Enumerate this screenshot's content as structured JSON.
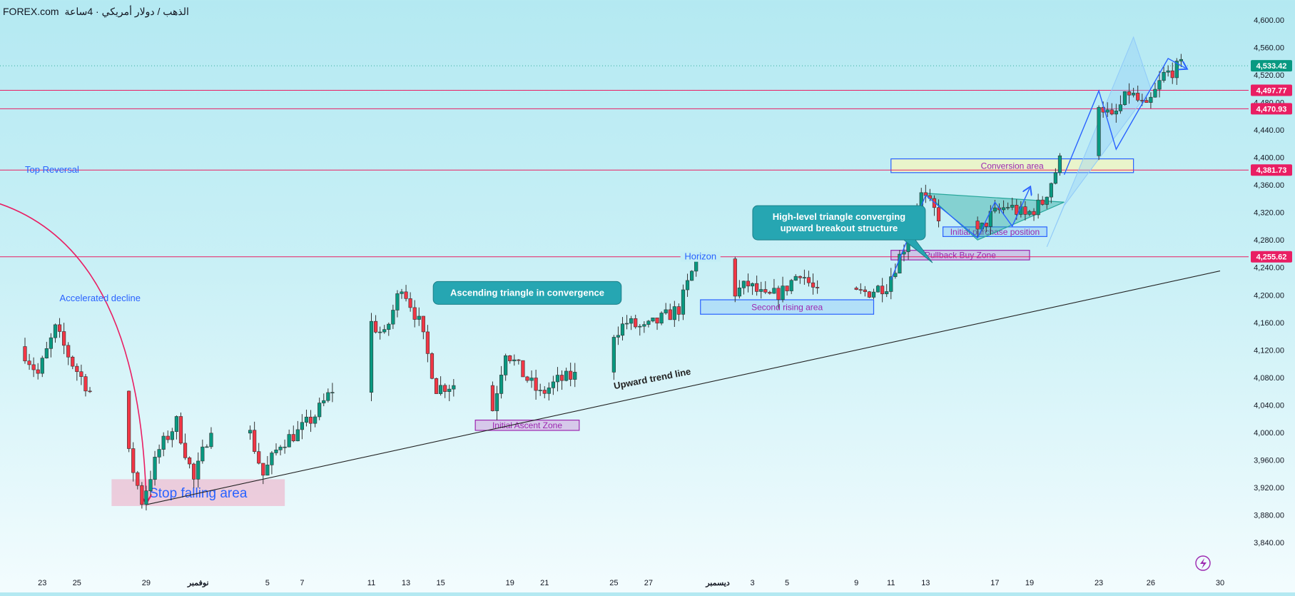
{
  "header": {
    "brand": "FOREX.com",
    "symbol": "الذهب / دولار أمريكي · 4ساعة"
  },
  "colors": {
    "up": "#089981",
    "down": "#f23645",
    "wick": "#333333",
    "level": "#e91e63",
    "trend": "#222222",
    "blue": "#2962ff",
    "purple": "#9c27b0",
    "teal": "#26a69a"
  },
  "chart_data": {
    "type": "candlestick",
    "x_start": "2024-10-22",
    "x_end": "2024-12-30",
    "ylim": [
      3840,
      4600
    ],
    "y_ticks": [
      3840,
      3880,
      3920,
      3960,
      4000,
      4040,
      4080,
      4120,
      4160,
      4200,
      4240,
      4280,
      4320,
      4360,
      4400,
      4440,
      4480,
      4520,
      4560,
      4600
    ],
    "x_ticks": [
      {
        "label": "23",
        "date": "2024-10-23"
      },
      {
        "label": "25",
        "date": "2024-10-25"
      },
      {
        "label": "29",
        "date": "2024-10-29"
      },
      {
        "label": "نوفمبر",
        "date": "2024-11-01"
      },
      {
        "label": "5",
        "date": "2024-11-05"
      },
      {
        "label": "7",
        "date": "2024-11-07"
      },
      {
        "label": "11",
        "date": "2024-11-11"
      },
      {
        "label": "13",
        "date": "2024-11-13"
      },
      {
        "label": "15",
        "date": "2024-11-15"
      },
      {
        "label": "19",
        "date": "2024-11-19"
      },
      {
        "label": "21",
        "date": "2024-11-21"
      },
      {
        "label": "25",
        "date": "2024-11-25"
      },
      {
        "label": "27",
        "date": "2024-11-27"
      },
      {
        "label": "ديسمبر",
        "date": "2024-12-01"
      },
      {
        "label": "3",
        "date": "2024-12-03"
      },
      {
        "label": "5",
        "date": "2024-12-05"
      },
      {
        "label": "9",
        "date": "2024-12-09"
      },
      {
        "label": "11",
        "date": "2024-12-11"
      },
      {
        "label": "13",
        "date": "2024-12-13"
      },
      {
        "label": "17",
        "date": "2024-12-17"
      },
      {
        "label": "19",
        "date": "2024-12-19"
      },
      {
        "label": "23",
        "date": "2024-12-23"
      },
      {
        "label": "26",
        "date": "2024-12-26"
      },
      {
        "label": "30",
        "date": "2024-12-30"
      }
    ],
    "price_labels": [
      {
        "value": "4,533.42",
        "price": 4533.42,
        "color": "#089981"
      },
      {
        "value": "4,497.77",
        "price": 4497.77,
        "color": "#e91e63"
      },
      {
        "value": "4,470.93",
        "price": 4470.93,
        "color": "#e91e63"
      },
      {
        "value": "4,381.73",
        "price": 4381.73,
        "color": "#e91e63"
      },
      {
        "value": "4,255.62",
        "price": 4255.62,
        "color": "#e91e63"
      }
    ],
    "price_path": [
      [
        "2024-10-22",
        4125
      ],
      [
        "2024-10-23",
        4085
      ],
      [
        "2024-10-24",
        4150
      ],
      [
        "2024-10-25",
        4100
      ],
      [
        "2024-10-26",
        4060
      ],
      [
        "2024-10-28",
        3990
      ],
      [
        "2024-10-29",
        3900
      ],
      [
        "2024-10-30",
        3975
      ],
      [
        "2024-10-31",
        4015
      ],
      [
        "2024-11-01",
        3930
      ],
      [
        "2024-11-02",
        4010
      ],
      [
        "2024-11-04",
        4018
      ],
      [
        "2024-11-05",
        3938
      ],
      [
        "2024-11-06",
        3985
      ],
      [
        "2024-11-07",
        4000
      ],
      [
        "2024-11-08",
        4025
      ],
      [
        "2024-11-10",
        4100
      ],
      [
        "2024-11-11",
        4165
      ],
      [
        "2024-11-12",
        4140
      ],
      [
        "2024-11-13",
        4215
      ],
      [
        "2024-11-14",
        4160
      ],
      [
        "2024-11-15",
        4065
      ],
      [
        "2024-11-16",
        4070
      ],
      [
        "2024-11-18",
        4005
      ],
      [
        "2024-11-19",
        4120
      ],
      [
        "2024-11-20",
        4085
      ],
      [
        "2024-11-21",
        4055
      ],
      [
        "2024-11-22",
        4075
      ],
      [
        "2024-11-24",
        4090
      ],
      [
        "2024-11-25",
        4140
      ],
      [
        "2024-11-26",
        4160
      ],
      [
        "2024-11-27",
        4150
      ],
      [
        "2024-11-28",
        4165
      ],
      [
        "2024-11-29",
        4180
      ],
      [
        "2024-11-30",
        4250
      ],
      [
        "2024-12-01",
        4225
      ],
      [
        "2024-12-02",
        4200
      ],
      [
        "2024-12-03",
        4215
      ],
      [
        "2024-12-04",
        4195
      ],
      [
        "2024-12-05",
        4205
      ],
      [
        "2024-12-06",
        4235
      ],
      [
        "2024-12-07",
        4200
      ],
      [
        "2024-12-09",
        4200
      ],
      [
        "2024-12-10",
        4205
      ],
      [
        "2024-12-11",
        4215
      ],
      [
        "2024-12-12",
        4270
      ],
      [
        "2024-12-13",
        4345
      ],
      [
        "2024-12-14",
        4315
      ],
      [
        "2024-12-16",
        4280
      ],
      [
        "2024-12-17",
        4315
      ],
      [
        "2024-12-18",
        4330
      ],
      [
        "2024-12-19",
        4315
      ],
      [
        "2024-12-20",
        4335
      ],
      [
        "2024-12-21",
        4395
      ],
      [
        "2024-12-22",
        4430
      ],
      [
        "2024-12-23",
        4490
      ],
      [
        "2024-12-24",
        4455
      ],
      [
        "2024-12-25",
        4495
      ],
      [
        "2024-12-26",
        4470
      ],
      [
        "2024-12-27",
        4520
      ],
      [
        "2024-12-28",
        4533
      ]
    ],
    "levels": [
      {
        "name": "Top Reversal",
        "price": 4381.73,
        "color": "#e91e63"
      },
      {
        "name": "Horizon",
        "price": 4255.62,
        "color": "#e91e63"
      },
      {
        "name": "current",
        "price": 4533.42,
        "color": "#089981"
      },
      {
        "name": "",
        "price": 4497.77,
        "color": "#e91e63"
      },
      {
        "name": "",
        "price": 4470.93,
        "color": "#e91e63"
      }
    ],
    "trend_line": {
      "label": "Upward trend line",
      "from": [
        "2024-10-29",
        3895
      ],
      "to": [
        "2024-12-30",
        4235
      ]
    },
    "zones": [
      {
        "label": "Stop falling area",
        "x0": "2024-10-27",
        "x1": "2024-11-06",
        "y0": 3893,
        "y1": 3932,
        "fill": "rgba(244,143,177,0.42)",
        "stroke": "none",
        "text_color": "#2962ff",
        "text_size": 19
      },
      {
        "label": "Initial Ascent Zone",
        "x0": "2024-11-17",
        "x1": "2024-11-23",
        "y0": 4003,
        "y1": 4018,
        "fill": "rgba(206,147,216,0.45)",
        "stroke": "#9c27b0",
        "text_color": "#9c27b0",
        "text_size": 12
      },
      {
        "label": "Second rising area",
        "x0": "2024-11-30",
        "x1": "2024-12-10",
        "y0": 4172,
        "y1": 4193,
        "fill": "rgba(144,202,249,0.45)",
        "stroke": "#2962ff",
        "text_color": "#9c27b0",
        "text_size": 12
      },
      {
        "label": "Pullback Buy Zone",
        "x0": "2024-12-11",
        "x1": "2024-12-19",
        "y0": 4251,
        "y1": 4265,
        "fill": "rgba(206,147,216,0.45)",
        "stroke": "#9c27b0",
        "text_color": "#9c27b0",
        "text_size": 12
      },
      {
        "label": "Initial purchase position",
        "x0": "2024-12-14",
        "x1": "2024-12-20",
        "y0": 4285,
        "y1": 4299,
        "fill": "rgba(144,202,249,0.45)",
        "stroke": "#2962ff",
        "text_color": "#9c27b0",
        "text_size": 12
      },
      {
        "label": "Conversion area",
        "x0": "2024-12-11",
        "x1": "2024-12-25",
        "y0": 4378,
        "y1": 4398,
        "fill": "rgba(240,244,195,0.85)",
        "stroke": "#2962ff",
        "text_color": "#9c27b0",
        "text_size": 12
      }
    ],
    "annotations": [
      {
        "kind": "plain",
        "text": "Top Reversal",
        "date": "2024-10-22",
        "price": 4381.73,
        "color": "#2962ff"
      },
      {
        "kind": "plain",
        "text": "Horizon",
        "date": "2024-11-30",
        "price": 4255.62,
        "color": "#2962ff"
      },
      {
        "kind": "plain",
        "text": "Accelerated decline",
        "date": "2024-10-24",
        "price": 4195,
        "color": "#2962ff"
      },
      {
        "kind": "plain",
        "text": "Upward trend line",
        "date": "2024-11-25",
        "price": 4067,
        "color": "#222222",
        "rotate": -11
      },
      {
        "kind": "callout",
        "lines": [
          "Ascending triangle in convergence"
        ],
        "date": "2024-11-20",
        "price": 4203
      },
      {
        "kind": "callout",
        "lines": [
          "High-level triangle converging",
          "upward breakout structure"
        ],
        "date": "2024-12-08",
        "price": 4305
      }
    ],
    "triangles": [
      {
        "points": [
          [
            "2024-12-13",
            4348
          ],
          [
            "2024-12-21",
            4335
          ],
          [
            "2024-12-16",
            4280
          ]
        ],
        "fill": "rgba(38,166,154,0.40)",
        "stroke": "#26a69a"
      }
    ],
    "channel": {
      "points": [
        [
          "2024-12-20",
          4270
        ],
        [
          "2024-12-25",
          4575
        ],
        [
          "2024-12-26",
          4500
        ],
        [
          "2024-12-21",
          4330
        ]
      ],
      "fill": "rgba(144,202,249,0.35)",
      "stroke": "#90caf9"
    },
    "zigzags": [
      {
        "points": [
          [
            "2024-12-11",
            4222
          ],
          [
            "2024-12-13",
            4345
          ],
          [
            "2024-12-16",
            4283
          ],
          [
            "2024-12-17",
            4335
          ],
          [
            "2024-12-18",
            4300
          ],
          [
            "2024-12-19",
            4355
          ]
        ],
        "color": "#2962ff"
      },
      {
        "points": [
          [
            "2024-12-21",
            4375
          ],
          [
            "2024-12-23",
            4497
          ],
          [
            "2024-12-24",
            4412
          ],
          [
            "2024-12-26",
            4500
          ],
          [
            "2024-12-27",
            4544
          ],
          [
            "2024-12-28",
            4530
          ]
        ],
        "color": "#2962ff"
      }
    ],
    "arc": {
      "from": [
        "2024-10-20",
        4337
      ],
      "to": [
        "2024-10-29",
        3900
      ],
      "color": "#e91e63"
    }
  }
}
